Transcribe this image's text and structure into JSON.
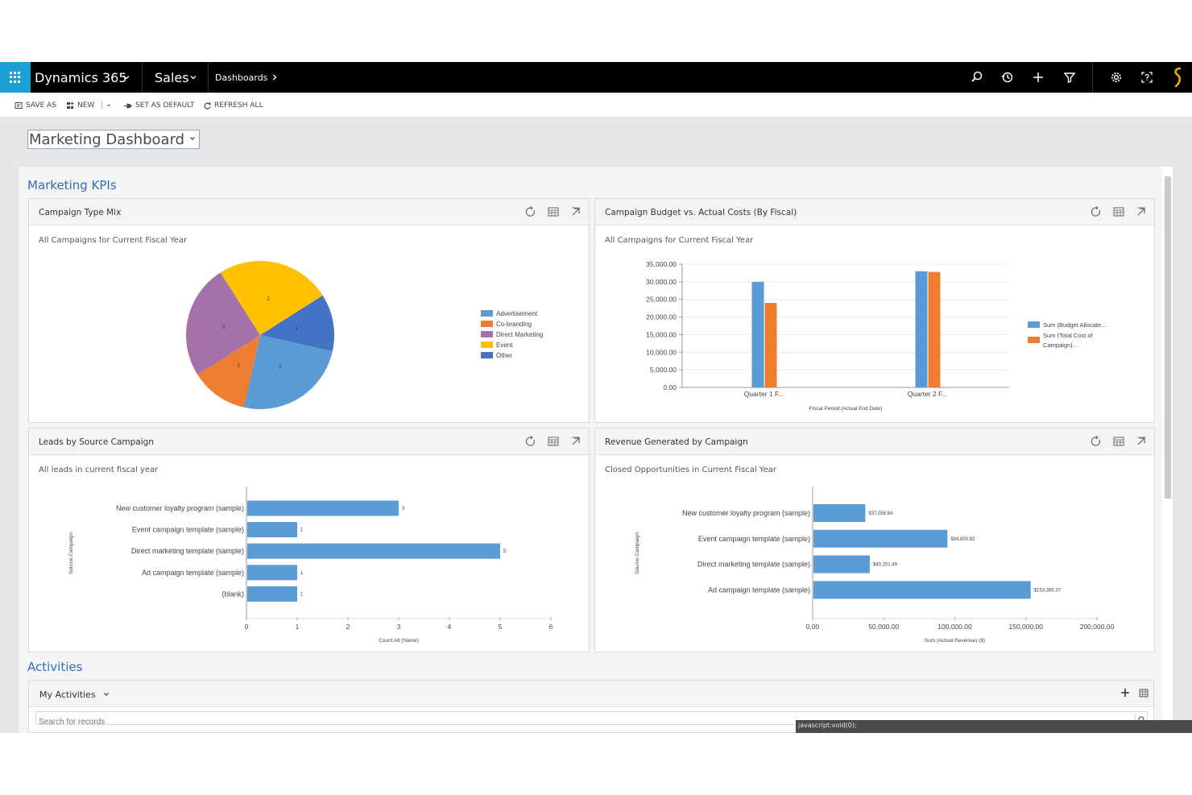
{
  "topnav": {
    "app_name": "Dynamics 365",
    "area": "Sales",
    "breadcrumb": "Dashboards"
  },
  "commands": {
    "save_as": "SAVE AS",
    "new": "NEW",
    "set_default": "SET AS DEFAULT",
    "refresh_all": "REFRESH ALL"
  },
  "dashboard": {
    "selected": "Marketing Dashboard"
  },
  "sections": {
    "kpis": "Marketing KPIs",
    "activities": "Activities"
  },
  "panels": {
    "campaign_mix": {
      "title": "Campaign Type Mix",
      "subtitle": "All Campaigns for Current Fiscal Year"
    },
    "budget": {
      "title": "Campaign Budget vs. Actual Costs (By Fiscal)",
      "subtitle": "All Campaigns for Current Fiscal Year"
    },
    "leads": {
      "title": "Leads by Source Campaign",
      "subtitle": "All leads in current fiscal year"
    },
    "revenue": {
      "title": "Revenue Generated by Campaign",
      "subtitle": "Closed Opportunities in Current Fiscal Year"
    }
  },
  "activities": {
    "view": "My Activities",
    "search_placeholder": "Search for records"
  },
  "status_text": "javascript:void(0);",
  "colors": {
    "blue": "#5b9bd5",
    "orange": "#ed7d31",
    "purple": "#a472a9",
    "yellow": "#ffc000",
    "navy": "#4472c4",
    "accent": "#1c9fd7"
  },
  "chart_data": [
    {
      "type": "pie",
      "title": "Campaign Type Mix",
      "categories": [
        "Advertisement",
        "Co-branding",
        "Direct Marketing",
        "Event",
        "Other"
      ],
      "values": [
        2,
        1,
        2,
        2,
        1
      ],
      "legend": "right"
    },
    {
      "type": "bar",
      "title": "Campaign Budget vs. Actual Costs (By Fiscal)",
      "categories": [
        "Quarter 1 F...",
        "Quarter 2 F..."
      ],
      "series": [
        {
          "name": "Sum (Budget Allocate...",
          "values": [
            30000,
            33000
          ]
        },
        {
          "name": "Sum (Total Cost of Campaign)...",
          "values": [
            24000,
            32800
          ]
        }
      ],
      "xlabel": "Fiscal Period (Actual End Date)",
      "ylim": [
        0,
        35000
      ],
      "yticks": [
        "35,000.00",
        "30,000.00",
        "25,000.00",
        "20,000.00",
        "15,000.00",
        "10,000.00",
        "5,000.00",
        "0.00"
      ],
      "legend": "right",
      "grid": true
    },
    {
      "type": "bar",
      "orientation": "horizontal",
      "title": "Leads by Source Campaign",
      "categories": [
        "New customer loyalty program (sample)",
        "Event campaign template (sample)",
        "Direct marketing template (sample)",
        "Ad campaign template (sample)",
        "(blank)"
      ],
      "values": [
        3,
        1,
        5,
        1,
        1
      ],
      "xlabel": "Count:All (Name)",
      "ylabel": "Source Campaign",
      "xlim": [
        0,
        6
      ],
      "xticks": [
        "0",
        "1",
        "2",
        "3",
        "4",
        "5",
        "6"
      ]
    },
    {
      "type": "bar",
      "orientation": "horizontal",
      "title": "Revenue Generated by Campaign",
      "categories": [
        "New customer loyalty program (sample)",
        "Event campaign template (sample)",
        "Direct marketing template (sample)",
        "Ad campaign template (sample)"
      ],
      "values": [
        37058.84,
        94800.82,
        40201.49,
        153385.37
      ],
      "labels": [
        "$37,058.84",
        "$94,800.82",
        "$40,201.49",
        "$153,385.37"
      ],
      "xlabel": "Sum (Actual Revenue) ($)",
      "ylabel": "Source Campaign",
      "xlim": [
        0,
        200000
      ],
      "xticks": [
        "0.00",
        "50,000.00",
        "100,000.00",
        "150,000.00",
        "200,000.00"
      ]
    }
  ]
}
